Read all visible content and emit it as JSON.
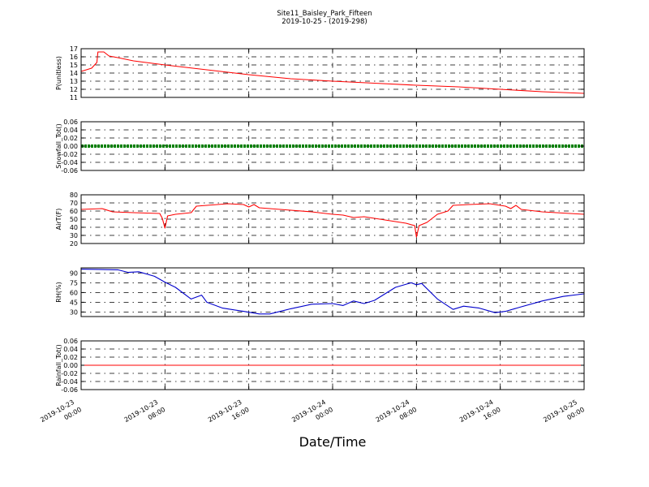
{
  "figure": {
    "title_line1": "Site11_Baisley_Park_Fifteen",
    "title_line2": "2019-10-25 - (2019-298)",
    "xlabel": "Date/Time"
  },
  "chart_data": {
    "type": "line",
    "x_range": [
      "2019-10-23 00:00",
      "2019-10-25 00:00"
    ],
    "x_ticks": [
      {
        "t": "2019-10-23 00:00",
        "l1": "2019-10-23",
        "l2": "00:00"
      },
      {
        "t": "2019-10-23 08:00",
        "l1": "2019-10-23",
        "l2": "08:00"
      },
      {
        "t": "2019-10-23 16:00",
        "l1": "2019-10-23",
        "l2": "16:00"
      },
      {
        "t": "2019-10-24 00:00",
        "l1": "2019-10-24",
        "l2": "00:00"
      },
      {
        "t": "2019-10-24 08:00",
        "l1": "2019-10-24",
        "l2": "08:00"
      },
      {
        "t": "2019-10-24 16:00",
        "l1": "2019-10-24",
        "l2": "16:00"
      },
      {
        "t": "2019-10-25 00:00",
        "l1": "2019-10-25",
        "l2": "00:00"
      }
    ],
    "grid": true,
    "panels": [
      {
        "ylabel": "P(unitless)",
        "ylim": [
          11,
          17
        ],
        "yticks": [
          "11",
          "12",
          "13",
          "14",
          "15",
          "16",
          "17"
        ],
        "color": "#ff0000",
        "series": [
          {
            "x": "2019-10-23 00:00",
            "y": 14.2
          },
          {
            "x": "2019-10-23 01:00",
            "y": 14.6
          },
          {
            "x": "2019-10-23 01:30",
            "y": 15.3
          },
          {
            "x": "2019-10-23 01:36",
            "y": 16.6
          },
          {
            "x": "2019-10-23 02:10",
            "y": 16.6
          },
          {
            "x": "2019-10-23 02:40",
            "y": 16.1
          },
          {
            "x": "2019-10-23 03:30",
            "y": 15.9
          },
          {
            "x": "2019-10-23 05:00",
            "y": 15.5
          },
          {
            "x": "2019-10-23 08:00",
            "y": 15.0
          },
          {
            "x": "2019-10-23 12:00",
            "y": 14.4
          },
          {
            "x": "2019-10-23 16:00",
            "y": 13.8
          },
          {
            "x": "2019-10-23 20:00",
            "y": 13.3
          },
          {
            "x": "2019-10-24 00:00",
            "y": 13.0
          },
          {
            "x": "2019-10-24 04:00",
            "y": 12.75
          },
          {
            "x": "2019-10-24 08:00",
            "y": 12.5
          },
          {
            "x": "2019-10-24 12:00",
            "y": 12.3
          },
          {
            "x": "2019-10-24 16:00",
            "y": 12.0
          },
          {
            "x": "2019-10-24 20:00",
            "y": 11.7
          },
          {
            "x": "2019-10-25 00:00",
            "y": 11.5
          }
        ]
      },
      {
        "ylabel": "Snowfall_Tot()",
        "ylim": [
          -0.06,
          0.06
        ],
        "yticks": [
          "-0.06",
          "-0.04",
          "-0.02",
          "0.00",
          "0.02",
          "0.04",
          "0.06"
        ],
        "color": "#008000",
        "style": "thick",
        "series": [
          {
            "x": "2019-10-23 00:00",
            "y": 0
          },
          {
            "x": "2019-10-25 00:00",
            "y": 0
          }
        ]
      },
      {
        "ylabel": "AirT(F)",
        "ylim": [
          20,
          80
        ],
        "yticks": [
          "20",
          "30",
          "40",
          "50",
          "60",
          "70",
          "80"
        ],
        "color": "#ff0000",
        "series": [
          {
            "x": "2019-10-23 00:00",
            "y": 62
          },
          {
            "x": "2019-10-23 02:00",
            "y": 63
          },
          {
            "x": "2019-10-23 03:00",
            "y": 59
          },
          {
            "x": "2019-10-23 05:00",
            "y": 58
          },
          {
            "x": "2019-10-23 07:30",
            "y": 57
          },
          {
            "x": "2019-10-23 07:45",
            "y": 51
          },
          {
            "x": "2019-10-23 08:00",
            "y": 39
          },
          {
            "x": "2019-10-23 08:15",
            "y": 54
          },
          {
            "x": "2019-10-23 09:00",
            "y": 56
          },
          {
            "x": "2019-10-23 10:30",
            "y": 58
          },
          {
            "x": "2019-10-23 11:00",
            "y": 66
          },
          {
            "x": "2019-10-23 12:00",
            "y": 67
          },
          {
            "x": "2019-10-23 14:00",
            "y": 69
          },
          {
            "x": "2019-10-23 15:30",
            "y": 68
          },
          {
            "x": "2019-10-23 16:00",
            "y": 65
          },
          {
            "x": "2019-10-23 16:30",
            "y": 68
          },
          {
            "x": "2019-10-23 17:00",
            "y": 64
          },
          {
            "x": "2019-10-23 19:00",
            "y": 62
          },
          {
            "x": "2019-10-23 22:00",
            "y": 59
          },
          {
            "x": "2019-10-24 00:00",
            "y": 56
          },
          {
            "x": "2019-10-24 01:00",
            "y": 55
          },
          {
            "x": "2019-10-24 02:00",
            "y": 52
          },
          {
            "x": "2019-10-24 03:00",
            "y": 53
          },
          {
            "x": "2019-10-24 05:00",
            "y": 49
          },
          {
            "x": "2019-10-24 07:00",
            "y": 45
          },
          {
            "x": "2019-10-24 07:50",
            "y": 42
          },
          {
            "x": "2019-10-24 08:00",
            "y": 28
          },
          {
            "x": "2019-10-24 08:15",
            "y": 42
          },
          {
            "x": "2019-10-24 09:00",
            "y": 46
          },
          {
            "x": "2019-10-24 10:00",
            "y": 56
          },
          {
            "x": "2019-10-24 11:00",
            "y": 60
          },
          {
            "x": "2019-10-24 11:30",
            "y": 67
          },
          {
            "x": "2019-10-24 13:00",
            "y": 68
          },
          {
            "x": "2019-10-24 15:00",
            "y": 69
          },
          {
            "x": "2019-10-24 16:30",
            "y": 66
          },
          {
            "x": "2019-10-24 17:00",
            "y": 63
          },
          {
            "x": "2019-10-24 17:30",
            "y": 67
          },
          {
            "x": "2019-10-24 18:00",
            "y": 62
          },
          {
            "x": "2019-10-24 20:00",
            "y": 59
          },
          {
            "x": "2019-10-25 00:00",
            "y": 56
          }
        ]
      },
      {
        "ylabel": "RH(%)",
        "ylim": [
          23,
          98
        ],
        "yticks": [
          "30",
          "45",
          "60",
          "75",
          "90"
        ],
        "ytick_values": [
          30,
          45,
          60,
          75,
          90
        ],
        "color": "#0000cc",
        "series": [
          {
            "x": "2019-10-23 00:00",
            "y": 96
          },
          {
            "x": "2019-10-23 03:30",
            "y": 95
          },
          {
            "x": "2019-10-23 04:30",
            "y": 91
          },
          {
            "x": "2019-10-23 05:30",
            "y": 92
          },
          {
            "x": "2019-10-23 07:00",
            "y": 85
          },
          {
            "x": "2019-10-23 08:00",
            "y": 76
          },
          {
            "x": "2019-10-23 09:00",
            "y": 68
          },
          {
            "x": "2019-10-23 10:30",
            "y": 50
          },
          {
            "x": "2019-10-23 11:30",
            "y": 56
          },
          {
            "x": "2019-10-23 12:00",
            "y": 45
          },
          {
            "x": "2019-10-23 13:30",
            "y": 36
          },
          {
            "x": "2019-10-23 15:30",
            "y": 31
          },
          {
            "x": "2019-10-23 17:00",
            "y": 27
          },
          {
            "x": "2019-10-23 18:00",
            "y": 27
          },
          {
            "x": "2019-10-23 20:00",
            "y": 35
          },
          {
            "x": "2019-10-23 22:00",
            "y": 42
          },
          {
            "x": "2019-10-24 00:00",
            "y": 43
          },
          {
            "x": "2019-10-24 01:00",
            "y": 40
          },
          {
            "x": "2019-10-24 02:00",
            "y": 47
          },
          {
            "x": "2019-10-24 03:00",
            "y": 43
          },
          {
            "x": "2019-10-24 04:00",
            "y": 48
          },
          {
            "x": "2019-10-24 06:00",
            "y": 68
          },
          {
            "x": "2019-10-24 07:30",
            "y": 75
          },
          {
            "x": "2019-10-24 08:00",
            "y": 72
          },
          {
            "x": "2019-10-24 08:30",
            "y": 74
          },
          {
            "x": "2019-10-24 10:00",
            "y": 50
          },
          {
            "x": "2019-10-24 11:30",
            "y": 34
          },
          {
            "x": "2019-10-24 12:30",
            "y": 39
          },
          {
            "x": "2019-10-24 14:00",
            "y": 36
          },
          {
            "x": "2019-10-24 15:30",
            "y": 29
          },
          {
            "x": "2019-10-24 16:30",
            "y": 31
          },
          {
            "x": "2019-10-24 18:00",
            "y": 38
          },
          {
            "x": "2019-10-24 20:00",
            "y": 47
          },
          {
            "x": "2019-10-24 22:00",
            "y": 54
          },
          {
            "x": "2019-10-25 00:00",
            "y": 58
          }
        ]
      },
      {
        "ylabel": "Rainfall_Tot()",
        "ylim": [
          -0.06,
          0.06
        ],
        "yticks": [
          "-0.06",
          "-0.04",
          "-0.02",
          "0.00",
          "0.02",
          "0.04",
          "0.06"
        ],
        "color": "#ff0000",
        "series": [
          {
            "x": "2019-10-23 00:00",
            "y": 0
          },
          {
            "x": "2019-10-25 00:00",
            "y": 0
          }
        ]
      }
    ]
  }
}
